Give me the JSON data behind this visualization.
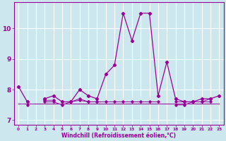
{
  "x": [
    0,
    1,
    2,
    3,
    4,
    5,
    6,
    7,
    8,
    9,
    10,
    11,
    12,
    13,
    14,
    15,
    16,
    17,
    18,
    19,
    20,
    21,
    22,
    23
  ],
  "line1": [
    8.1,
    7.6,
    null,
    7.7,
    7.8,
    7.6,
    7.6,
    8.0,
    7.8,
    7.7,
    8.5,
    8.8,
    10.5,
    9.6,
    10.5,
    10.5,
    7.8,
    8.9,
    7.7,
    7.6,
    7.6,
    7.7,
    7.7,
    7.8
  ],
  "line2": [
    null,
    7.5,
    null,
    7.6,
    7.6,
    7.5,
    7.6,
    7.7,
    7.6,
    7.6,
    null,
    null,
    null,
    null,
    null,
    null,
    null,
    null,
    7.5,
    7.5,
    7.6,
    7.6,
    7.7,
    null
  ],
  "line3": [
    null,
    null,
    null,
    7.65,
    7.65,
    null,
    7.6,
    7.65,
    7.6,
    7.6,
    7.6,
    7.6,
    7.6,
    7.6,
    7.6,
    7.6,
    7.6,
    null,
    7.6,
    7.6,
    7.6,
    7.6,
    7.6,
    null
  ],
  "line4_y": 7.55,
  "bg_color": "#cce8ee",
  "grid_color": "#ffffff",
  "line_color": "#990099",
  "xlabel": "Windchill (Refroidissement éolien,°C)",
  "yticks": [
    7,
    8,
    9,
    10
  ],
  "xticks": [
    0,
    1,
    2,
    3,
    4,
    5,
    6,
    7,
    8,
    9,
    10,
    11,
    12,
    13,
    14,
    15,
    16,
    17,
    18,
    19,
    20,
    21,
    22,
    23
  ],
  "ylim": [
    6.85,
    10.85
  ],
  "xlim": [
    -0.5,
    23.5
  ]
}
